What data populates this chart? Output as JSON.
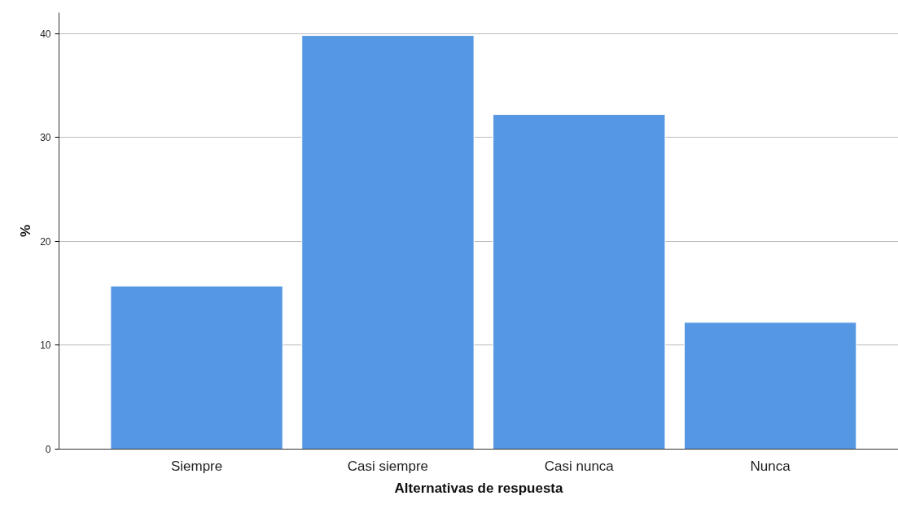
{
  "chart_data": {
    "type": "bar",
    "xlabel": "Alternativas de respuesta",
    "ylabel": "%",
    "categories": [
      "Siempre",
      "Casi siempre",
      "Casi nunca",
      "Nunca"
    ],
    "values": [
      15.7,
      39.8,
      32.2,
      12.2
    ],
    "color": "#5597e3",
    "ylim": [
      0,
      42
    ],
    "yticks": [
      0,
      10,
      20,
      30,
      40
    ],
    "grid": "y"
  }
}
